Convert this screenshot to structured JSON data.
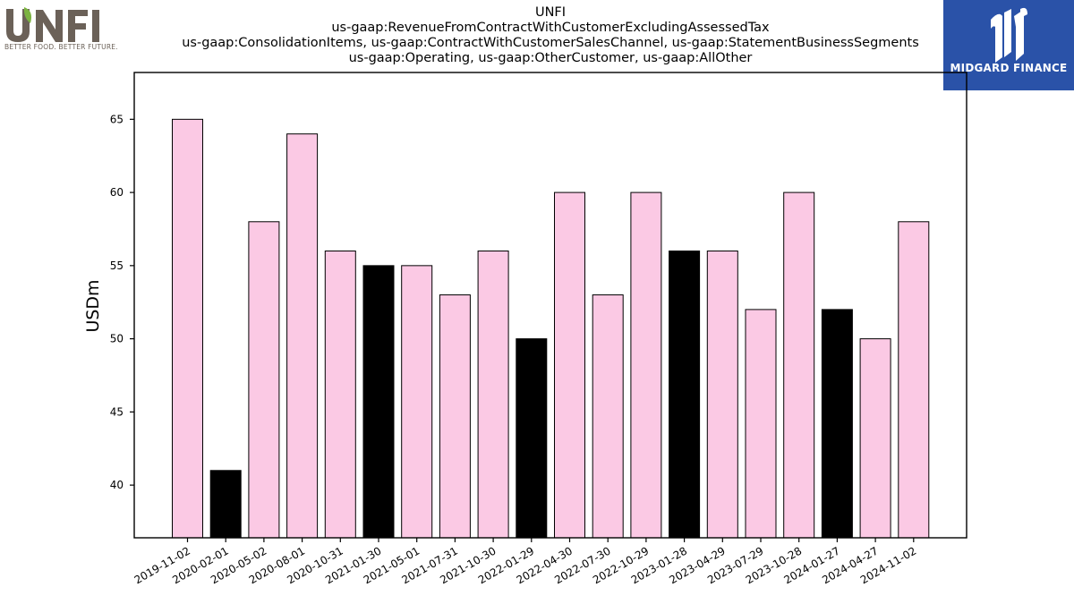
{
  "header": {
    "title_lines": [
      "UNFI",
      "us-gaap:RevenueFromContractWithCustomerExcludingAssessedTax",
      "us-gaap:ConsolidationItems, us-gaap:ContractWithCustomerSalesChannel, us-gaap:StatementBusinessSegments",
      "us-gaap:Operating, us-gaap:OtherCustomer, us-gaap:AllOther"
    ]
  },
  "logos": {
    "left": {
      "wordmark": "UNFI",
      "tagline": "BETTER FOOD. BETTER FUTURE.",
      "icon": "unfi-logo-icon"
    },
    "right": {
      "wordmark": "MIDGARD FINANCE",
      "icon": "midgard-logo-icon",
      "background": "#2a52a8"
    }
  },
  "chart_data": {
    "type": "bar",
    "title": "UNFI",
    "xlabel": "",
    "ylabel": "USDm",
    "ylim": [
      36.4,
      68.2
    ],
    "yticks": [
      40,
      45,
      50,
      55,
      60,
      65
    ],
    "grid": false,
    "legend": "none",
    "categories": [
      "2019-11-02",
      "2020-02-01",
      "2020-05-02",
      "2020-08-01",
      "2020-10-31",
      "2021-01-30",
      "2021-05-01",
      "2021-07-31",
      "2021-10-30",
      "2022-01-29",
      "2022-04-30",
      "2022-07-30",
      "2022-10-29",
      "2023-01-28",
      "2023-04-29",
      "2023-07-29",
      "2023-10-28",
      "2024-01-27",
      "2024-04-27",
      "2024-11-02"
    ],
    "values": [
      65,
      41,
      58,
      64,
      56,
      55,
      55,
      53,
      56,
      50,
      60,
      53,
      60,
      56,
      56,
      52,
      60,
      52,
      50,
      58
    ],
    "highlight": [
      false,
      true,
      false,
      false,
      false,
      true,
      false,
      false,
      false,
      true,
      false,
      false,
      false,
      true,
      false,
      false,
      false,
      true,
      false,
      false
    ],
    "colors": {
      "bar": "#fbc9e4",
      "highlight": "#000000",
      "edge": "#000000"
    }
  }
}
